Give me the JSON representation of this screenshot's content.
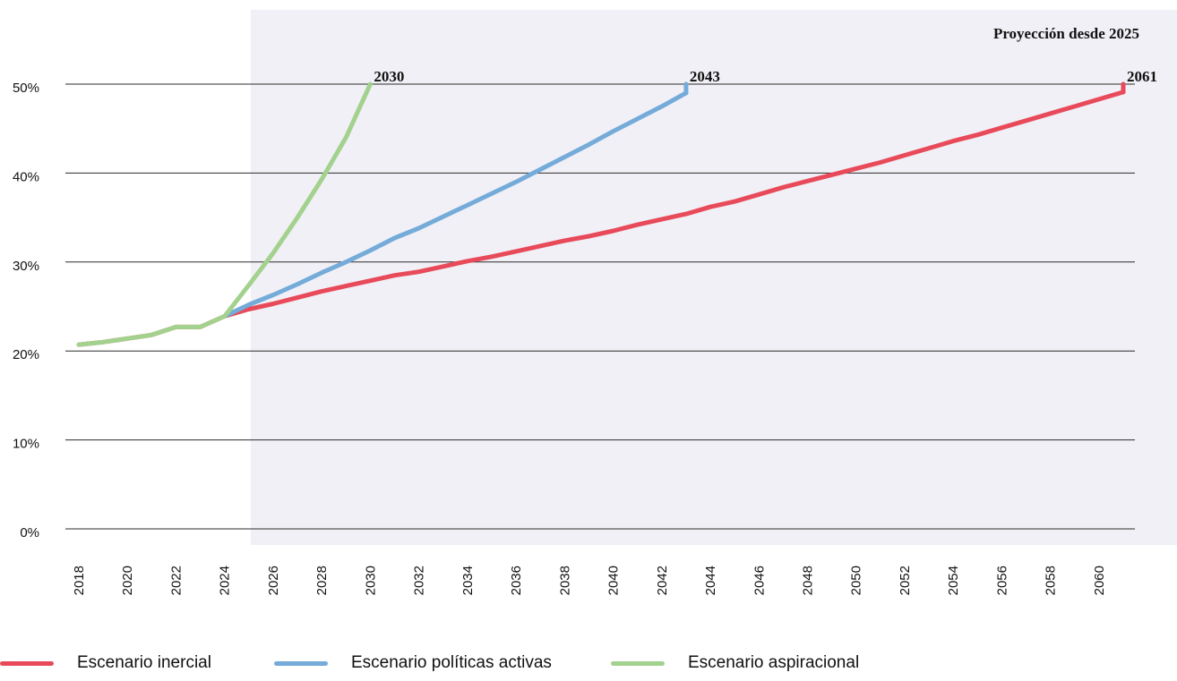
{
  "chart_data": {
    "type": "line",
    "projection_label": "Proyección desde 2025",
    "xlim": [
      2018,
      2061
    ],
    "ylim": [
      0,
      50
    ],
    "y_ticks": [
      "0%",
      "10%",
      "20%",
      "30%",
      "40%",
      "50%"
    ],
    "x_ticks": [
      "2018",
      "2020",
      "2022",
      "2024",
      "2026",
      "2028",
      "2030",
      "2032",
      "2034",
      "2036",
      "2038",
      "2040",
      "2042",
      "2044",
      "2046",
      "2048",
      "2050",
      "2052",
      "2054",
      "2056",
      "2058",
      "2060"
    ],
    "projection_start": 2025,
    "grid": true,
    "legend_position": "bottom",
    "series": [
      {
        "name": "Escenario inercial",
        "color": "#e84a5a",
        "end_label": "2061",
        "x": [
          2018,
          2019,
          2020,
          2021,
          2022,
          2023,
          2024,
          2025,
          2026,
          2027,
          2028,
          2029,
          2030,
          2031,
          2032,
          2033,
          2034,
          2035,
          2036,
          2037,
          2038,
          2039,
          2040,
          2041,
          2042,
          2043,
          2044,
          2045,
          2046,
          2047,
          2048,
          2049,
          2050,
          2051,
          2052,
          2053,
          2054,
          2055,
          2056,
          2057,
          2058,
          2059,
          2060,
          2061
        ],
        "y": [
          20.7,
          21.0,
          21.4,
          21.8,
          22.7,
          22.7,
          23.9,
          24.7,
          25.3,
          26.0,
          26.7,
          27.3,
          27.9,
          28.5,
          28.9,
          29.5,
          30.1,
          30.6,
          31.2,
          31.8,
          32.4,
          32.9,
          33.5,
          34.2,
          34.8,
          35.4,
          36.2,
          36.8,
          37.6,
          38.4,
          39.1,
          39.8,
          40.5,
          41.2,
          42.0,
          42.8,
          43.6,
          44.3,
          45.1,
          45.9,
          46.7,
          47.5,
          48.3,
          49.1
        ]
      },
      {
        "name": "Escenario políticas activas",
        "color": "#74abd9",
        "end_label": "2043",
        "x": [
          2024,
          2025,
          2026,
          2027,
          2028,
          2029,
          2030,
          2031,
          2032,
          2033,
          2034,
          2035,
          2036,
          2037,
          2038,
          2039,
          2040,
          2041,
          2042,
          2043
        ],
        "y": [
          23.9,
          25.2,
          26.3,
          27.5,
          28.8,
          30.0,
          31.3,
          32.7,
          33.8,
          35.1,
          36.4,
          37.7,
          39.0,
          40.4,
          41.8,
          43.2,
          44.7,
          46.1,
          47.5,
          49.0
        ]
      },
      {
        "name": "Escenario aspiracional",
        "color": "#a3d18e",
        "end_label": "2030",
        "x": [
          2018,
          2019,
          2020,
          2021,
          2022,
          2023,
          2024,
          2025,
          2026,
          2027,
          2028,
          2029,
          2030
        ],
        "y": [
          20.7,
          21.0,
          21.4,
          21.8,
          22.7,
          22.7,
          23.9,
          27.4,
          31.0,
          35.0,
          39.3,
          44.0,
          50.0
        ]
      }
    ]
  }
}
